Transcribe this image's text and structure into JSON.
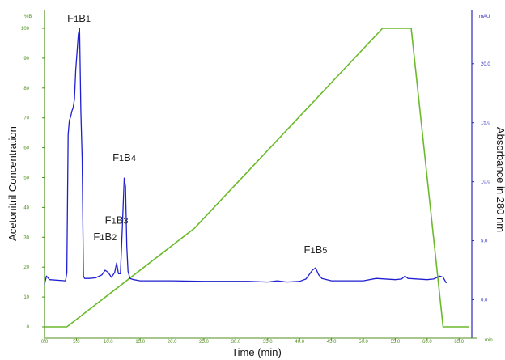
{
  "chart_data": {
    "type": "line",
    "xlabel": "Time (min)",
    "ylabel_left": "Acetonitril Concentration",
    "ylabel_right": "Absorbance in 280 nm",
    "left_unit": "%B",
    "right_unit": "mAU",
    "x_unit_label": "min",
    "xlim": [
      0,
      67
    ],
    "ylim_left": [
      0,
      100
    ],
    "ylim_right": [
      -2.3,
      23.0
    ],
    "x_ticks": [
      "0.0",
      "5.0",
      "10.0",
      "15.0",
      "20.0",
      "25.0",
      "30.0",
      "35.0",
      "40.0",
      "45.0",
      "50.0",
      "55.0",
      "60.0",
      "65.0"
    ],
    "y_ticks_left": [
      "0",
      "10",
      "20",
      "30",
      "40",
      "50",
      "60",
      "70",
      "80",
      "90",
      "100"
    ],
    "y_ticks_right": [
      "0.0",
      "5.0",
      "10.0",
      "15.0",
      "20.0"
    ],
    "colors": {
      "gradient": "#6aba2c",
      "absorbance": "#1f1fd1",
      "left_axis": "#4f8f1c",
      "right_axis": "#2b2bbd"
    },
    "series": [
      {
        "kind": "gradient",
        "axis": "left",
        "x": [
          0,
          3.5,
          23.5,
          53.0,
          57.5,
          62.5,
          66.5
        ],
        "y": [
          0,
          0,
          33,
          100,
          100,
          0,
          0
        ]
      },
      {
        "kind": "absorbance",
        "axis": "right",
        "x": [
          0.0,
          0.3,
          0.8,
          3.3,
          3.5,
          3.7,
          3.9,
          4.1,
          4.3,
          4.5,
          4.7,
          4.9,
          5.1,
          5.3,
          5.5,
          5.7,
          5.9,
          6.1,
          6.3,
          7.0,
          8.0,
          9.0,
          9.5,
          10.0,
          10.5,
          11.0,
          11.3,
          11.6,
          11.9,
          12.2,
          12.5,
          12.7,
          12.9,
          13.1,
          13.4,
          14.0,
          15.0,
          20.0,
          25.0,
          28.0,
          32.0,
          35.0,
          36.5,
          38.0,
          40.0,
          41.0,
          42.0,
          42.5,
          43.0,
          43.5,
          45.0,
          50.0,
          52.0,
          55.0,
          56.0,
          56.5,
          57.0,
          60.0,
          61.0,
          62.0,
          62.5,
          63.0
        ],
        "y": [
          1.3,
          2.0,
          1.7,
          1.6,
          2.3,
          14.0,
          15.2,
          15.5,
          16.0,
          16.3,
          17.0,
          19.5,
          21.0,
          22.5,
          23.0,
          16.0,
          12.0,
          2.0,
          1.8,
          1.8,
          1.85,
          2.1,
          2.5,
          2.3,
          1.9,
          2.3,
          3.1,
          2.2,
          2.2,
          6.0,
          10.3,
          9.6,
          4.5,
          2.4,
          1.8,
          1.7,
          1.6,
          1.6,
          1.55,
          1.55,
          1.55,
          1.5,
          1.6,
          1.5,
          1.55,
          1.75,
          2.5,
          2.7,
          2.1,
          1.8,
          1.6,
          1.6,
          1.8,
          1.7,
          1.75,
          2.0,
          1.8,
          1.7,
          1.75,
          2.0,
          1.9,
          1.4
        ]
      }
    ],
    "annotations": [
      {
        "main": "F",
        "s1": "1",
        "mid": "B",
        "s2": "1",
        "x": 5.4,
        "y": 23.0
      },
      {
        "main": "F",
        "s1": "1",
        "mid": "B",
        "s2": "2",
        "x": 9.5,
        "y": 4.5
      },
      {
        "main": "F",
        "s1": "1",
        "mid": "B",
        "s2": "3",
        "x": 11.3,
        "y": 5.9
      },
      {
        "main": "F",
        "s1": "1",
        "mid": "B",
        "s2": "4",
        "x": 12.5,
        "y": 11.2
      },
      {
        "main": "F",
        "s1": "1",
        "mid": "B",
        "s2": "5",
        "x": 42.5,
        "y": 3.4
      }
    ]
  }
}
